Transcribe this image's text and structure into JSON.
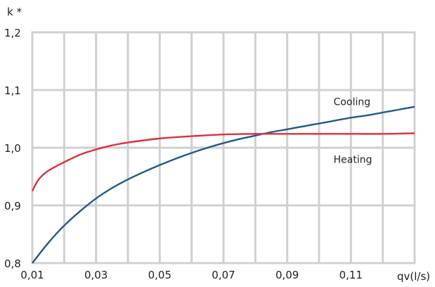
{
  "chart_data": {
    "type": "line",
    "xlabel": "qv(l/s)",
    "ylabel": "k *",
    "xlim": [
      0.01,
      0.13
    ],
    "ylim": [
      0.8,
      1.2
    ],
    "x_ticks": [
      0.01,
      0.02,
      0.03,
      0.04,
      0.05,
      0.06,
      0.07,
      0.08,
      0.09,
      0.1,
      0.11,
      0.12,
      0.13
    ],
    "x_tick_labels": [
      "0,01",
      "",
      "0,03",
      "",
      "0,05",
      "",
      "0,07",
      "",
      "0,09",
      "",
      "0,11",
      "",
      ""
    ],
    "y_ticks": [
      0.8,
      0.9,
      1.0,
      1.1,
      1.2
    ],
    "y_tick_labels": [
      "0,8",
      "0,9",
      "1,0",
      "1,1",
      "1,2"
    ],
    "grid": true,
    "series": [
      {
        "name": "Cooling",
        "color": "#1f5a8e",
        "x": [
          0.01,
          0.015,
          0.02,
          0.025,
          0.03,
          0.035,
          0.04,
          0.045,
          0.05,
          0.055,
          0.06,
          0.065,
          0.07,
          0.075,
          0.08,
          0.085,
          0.09,
          0.095,
          0.1,
          0.105,
          0.11,
          0.115,
          0.12,
          0.125,
          0.13
        ],
        "y": [
          0.8,
          0.835,
          0.865,
          0.89,
          0.912,
          0.93,
          0.945,
          0.958,
          0.97,
          0.981,
          0.991,
          1.0,
          1.008,
          1.015,
          1.021,
          1.027,
          1.032,
          1.037,
          1.042,
          1.047,
          1.052,
          1.056,
          1.061,
          1.066,
          1.071
        ]
      },
      {
        "name": "Heating",
        "color": "#e0303a",
        "x": [
          0.01,
          0.012,
          0.015,
          0.02,
          0.025,
          0.03,
          0.035,
          0.04,
          0.05,
          0.06,
          0.07,
          0.08,
          0.09,
          0.1,
          0.11,
          0.12,
          0.13
        ],
        "y": [
          0.925,
          0.945,
          0.96,
          0.975,
          0.988,
          0.997,
          1.004,
          1.009,
          1.016,
          1.02,
          1.023,
          1.024,
          1.024,
          1.024,
          1.024,
          1.024,
          1.025
        ]
      }
    ],
    "annotations": [
      {
        "text": "Cooling",
        "x": 0.105,
        "y": 1.08
      },
      {
        "text": "Heating",
        "x": 0.105,
        "y": 0.98
      }
    ]
  }
}
